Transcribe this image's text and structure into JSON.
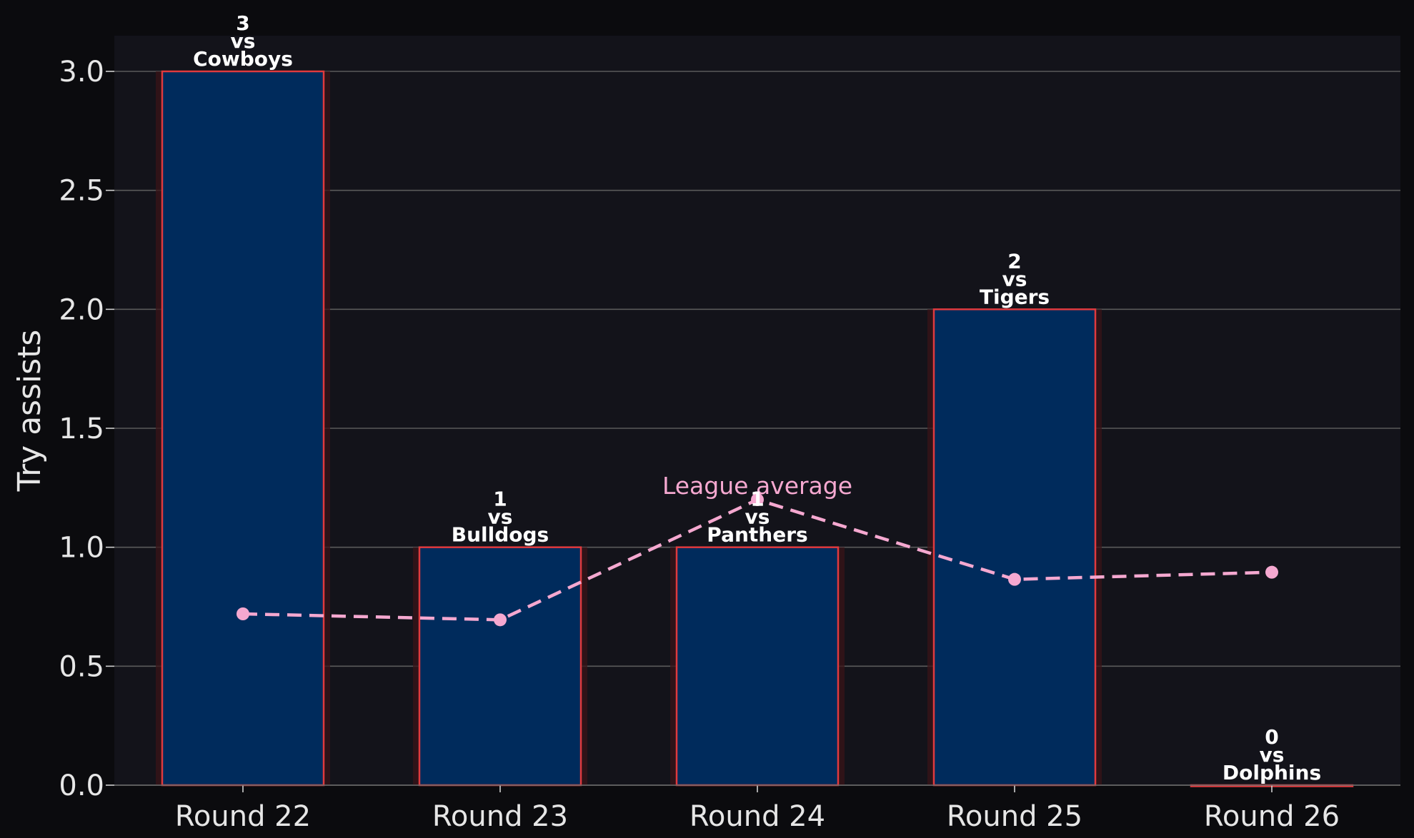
{
  "chart_data": {
    "type": "bar",
    "title": "",
    "xlabel": "",
    "ylabel": "Try assists",
    "ylim": [
      0,
      3.15
    ],
    "yticks": [
      "0.0",
      "0.5",
      "1.0",
      "1.5",
      "2.0",
      "2.5",
      "3.0"
    ],
    "ytick_values": [
      0,
      0.5,
      1.0,
      1.5,
      2.0,
      2.5,
      3.0
    ],
    "grid": "horizontal",
    "categories": [
      "Round 22",
      "Round 23",
      "Round 24",
      "Round 25",
      "Round 26"
    ],
    "values": [
      3,
      1,
      1,
      2,
      0
    ],
    "bar_labels": [
      {
        "value": "3",
        "vs": "vs",
        "opponent": "Cowboys"
      },
      {
        "value": "1",
        "vs": "vs",
        "opponent": "Bulldogs"
      },
      {
        "value": "1",
        "vs": "vs",
        "opponent": "Panthers"
      },
      {
        "value": "2",
        "vs": "vs",
        "opponent": "Tigers"
      },
      {
        "value": "0",
        "vs": "vs",
        "opponent": "Dolphins"
      }
    ],
    "line_series": {
      "label": "League average",
      "style": "dashed",
      "values": [
        0.72,
        0.695,
        1.2,
        0.865,
        0.895
      ]
    },
    "colors": {
      "background": "#0b0b0e",
      "plot_background": "#13131a",
      "bar_fill": "#002b5c",
      "bar_edge": "#e03a3e",
      "line": "#f5a8d0",
      "grid": "#5a5a5a"
    }
  }
}
